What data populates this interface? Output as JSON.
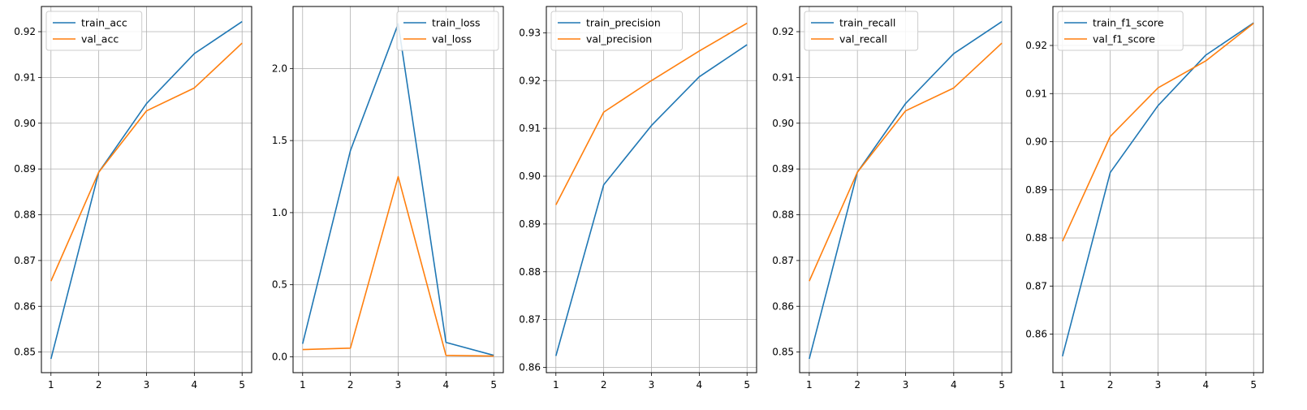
{
  "chart_data": [
    {
      "type": "line",
      "x": [
        1,
        2,
        3,
        4,
        5
      ],
      "ylim": [
        0.8455,
        0.9255
      ],
      "yticks": [
        0.85,
        0.86,
        0.87,
        0.88,
        0.89,
        0.9,
        0.91,
        0.92
      ],
      "ytick_labels": [
        "0.85",
        "0.86",
        "0.87",
        "0.88",
        "0.89",
        "0.90",
        "0.91",
        "0.92"
      ],
      "xtick_labels": [
        "1",
        "2",
        "3",
        "4",
        "5"
      ],
      "grid": true,
      "legend_position": "top-left",
      "series": [
        {
          "name": "train_acc",
          "color": "#1f77b4",
          "values": [
            0.8485,
            0.8893,
            0.9043,
            0.9152,
            0.9222
          ]
        },
        {
          "name": "val_acc",
          "color": "#ff7f0e",
          "values": [
            0.8655,
            0.8893,
            0.9027,
            0.9077,
            0.9175
          ]
        }
      ]
    },
    {
      "type": "line",
      "x": [
        1,
        2,
        3,
        4,
        5
      ],
      "ylim": [
        -0.11,
        2.43
      ],
      "yticks": [
        0.0,
        0.5,
        1.0,
        1.5,
        2.0
      ],
      "ytick_labels": [
        "0.0",
        "0.5",
        "1.0",
        "1.5",
        "2.0"
      ],
      "xtick_labels": [
        "1",
        "2",
        "3",
        "4",
        "5"
      ],
      "grid": true,
      "legend_position": "top-right",
      "series": [
        {
          "name": "train_loss",
          "color": "#1f77b4",
          "values": [
            0.09,
            1.43,
            2.31,
            0.1,
            0.01
          ]
        },
        {
          "name": "val_loss",
          "color": "#ff7f0e",
          "values": [
            0.05,
            0.06,
            1.25,
            0.01,
            0.005
          ]
        }
      ]
    },
    {
      "type": "line",
      "x": [
        1,
        2,
        3,
        4,
        5
      ],
      "ylim": [
        0.8589,
        0.9355
      ],
      "yticks": [
        0.86,
        0.87,
        0.88,
        0.89,
        0.9,
        0.91,
        0.92,
        0.93
      ],
      "ytick_labels": [
        "0.86",
        "0.87",
        "0.88",
        "0.89",
        "0.90",
        "0.91",
        "0.92",
        "0.93"
      ],
      "xtick_labels": [
        "1",
        "2",
        "3",
        "4",
        "5"
      ],
      "grid": true,
      "legend_position": "top-left",
      "series": [
        {
          "name": "train_precision",
          "color": "#1f77b4",
          "values": [
            0.8624,
            0.8982,
            0.9106,
            0.9208,
            0.9275
          ]
        },
        {
          "name": "val_precision",
          "color": "#ff7f0e",
          "values": [
            0.894,
            0.9134,
            0.92,
            0.9262,
            0.932
          ]
        }
      ]
    },
    {
      "type": "line",
      "x": [
        1,
        2,
        3,
        4,
        5
      ],
      "ylim": [
        0.8455,
        0.9255
      ],
      "yticks": [
        0.85,
        0.86,
        0.87,
        0.88,
        0.89,
        0.9,
        0.91,
        0.92
      ],
      "ytick_labels": [
        "0.85",
        "0.86",
        "0.87",
        "0.88",
        "0.89",
        "0.90",
        "0.91",
        "0.92"
      ],
      "xtick_labels": [
        "1",
        "2",
        "3",
        "4",
        "5"
      ],
      "grid": true,
      "legend_position": "top-left",
      "series": [
        {
          "name": "train_recall",
          "color": "#1f77b4",
          "values": [
            0.8485,
            0.8893,
            0.9043,
            0.9152,
            0.9222
          ]
        },
        {
          "name": "val_recall",
          "color": "#ff7f0e",
          "values": [
            0.8655,
            0.8893,
            0.9027,
            0.9077,
            0.9175
          ]
        }
      ]
    },
    {
      "type": "line",
      "x": [
        1,
        2,
        3,
        4,
        5
      ],
      "ylim": [
        0.852,
        0.9281
      ],
      "yticks": [
        0.86,
        0.87,
        0.88,
        0.89,
        0.9,
        0.91,
        0.92
      ],
      "ytick_labels": [
        "0.86",
        "0.87",
        "0.88",
        "0.89",
        "0.90",
        "0.91",
        "0.92"
      ],
      "xtick_labels": [
        "1",
        "2",
        "3",
        "4",
        "5"
      ],
      "grid": true,
      "legend_position": "top-left",
      "series": [
        {
          "name": "train_f1_score",
          "color": "#1f77b4",
          "values": [
            0.8554,
            0.8936,
            0.9075,
            0.918,
            0.9247
          ]
        },
        {
          "name": "val_f1_score",
          "color": "#ff7f0e",
          "values": [
            0.8793,
            0.9011,
            0.9112,
            0.9168,
            0.9246
          ]
        }
      ]
    }
  ]
}
